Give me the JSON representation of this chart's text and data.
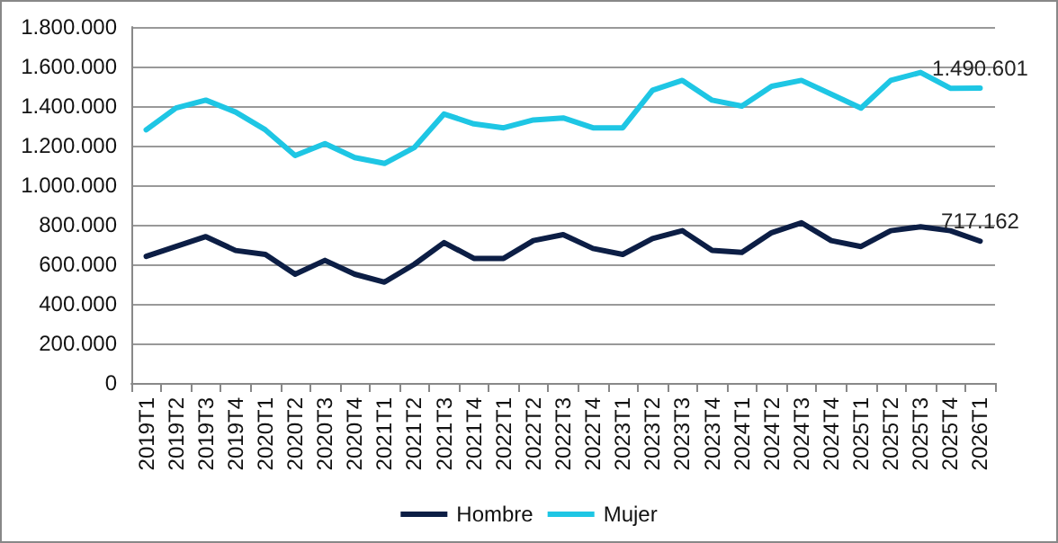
{
  "chart_data": {
    "type": "line",
    "categories": [
      "2019T1",
      "2019T2",
      "2019T3",
      "2019T4",
      "2020T1",
      "2020T2",
      "2020T3",
      "2020T4",
      "2021T1",
      "2021T2",
      "2021T3",
      "2021T4",
      "2022T1",
      "2022T2",
      "2022T3",
      "2022T4",
      "2023T1",
      "2023T2",
      "2023T3",
      "2023T4",
      "2024T1",
      "2024T2",
      "2024T3",
      "2024T4",
      "2025T1",
      "2025T2",
      "2025T3",
      "2025T4",
      "2026T1"
    ],
    "series": [
      {
        "name": "Hombre",
        "color": "#0c1e45",
        "values": [
          640000,
          690000,
          740000,
          670000,
          650000,
          550000,
          620000,
          550000,
          510000,
          600000,
          710000,
          630000,
          630000,
          720000,
          750000,
          680000,
          650000,
          730000,
          770000,
          670000,
          660000,
          760000,
          810000,
          720000,
          690000,
          770000,
          790000,
          770000,
          717162
        ],
        "value_labels": [
          null,
          null,
          null,
          null,
          null,
          null,
          null,
          null,
          null,
          null,
          null,
          null,
          null,
          null,
          null,
          null,
          null,
          null,
          null,
          null,
          null,
          null,
          null,
          null,
          null,
          null,
          null,
          null,
          "717.162"
        ]
      },
      {
        "name": "Mujer",
        "color": "#1ec6e4",
        "values": [
          1280000,
          1390000,
          1430000,
          1370000,
          1280000,
          1150000,
          1210000,
          1140000,
          1110000,
          1190000,
          1360000,
          1310000,
          1290000,
          1330000,
          1340000,
          1290000,
          1290000,
          1480000,
          1530000,
          1430000,
          1400000,
          1500000,
          1530000,
          1460000,
          1390000,
          1530000,
          1570000,
          1490000,
          1490601
        ],
        "value_labels": [
          null,
          null,
          null,
          null,
          null,
          null,
          null,
          null,
          null,
          null,
          null,
          null,
          null,
          null,
          null,
          null,
          null,
          null,
          null,
          null,
          null,
          null,
          null,
          null,
          null,
          null,
          null,
          null,
          "1.490.601"
        ]
      }
    ],
    "ylim": [
      0,
      1800000
    ],
    "yticks": [
      {
        "value": 0,
        "label": "0"
      },
      {
        "value": 200000,
        "label": "200.000"
      },
      {
        "value": 400000,
        "label": "400.000"
      },
      {
        "value": 600000,
        "label": "600.000"
      },
      {
        "value": 800000,
        "label": "800.000"
      },
      {
        "value": 1000000,
        "label": "1.000.000"
      },
      {
        "value": 1200000,
        "label": "1.200.000"
      },
      {
        "value": 1400000,
        "label": "1.400.000"
      },
      {
        "value": 1600000,
        "label": "1.600.000"
      },
      {
        "value": 1800000,
        "label": "1.800.000"
      }
    ],
    "grid": "y",
    "legend": "bottom",
    "marker": "none",
    "line_style": "solid"
  }
}
